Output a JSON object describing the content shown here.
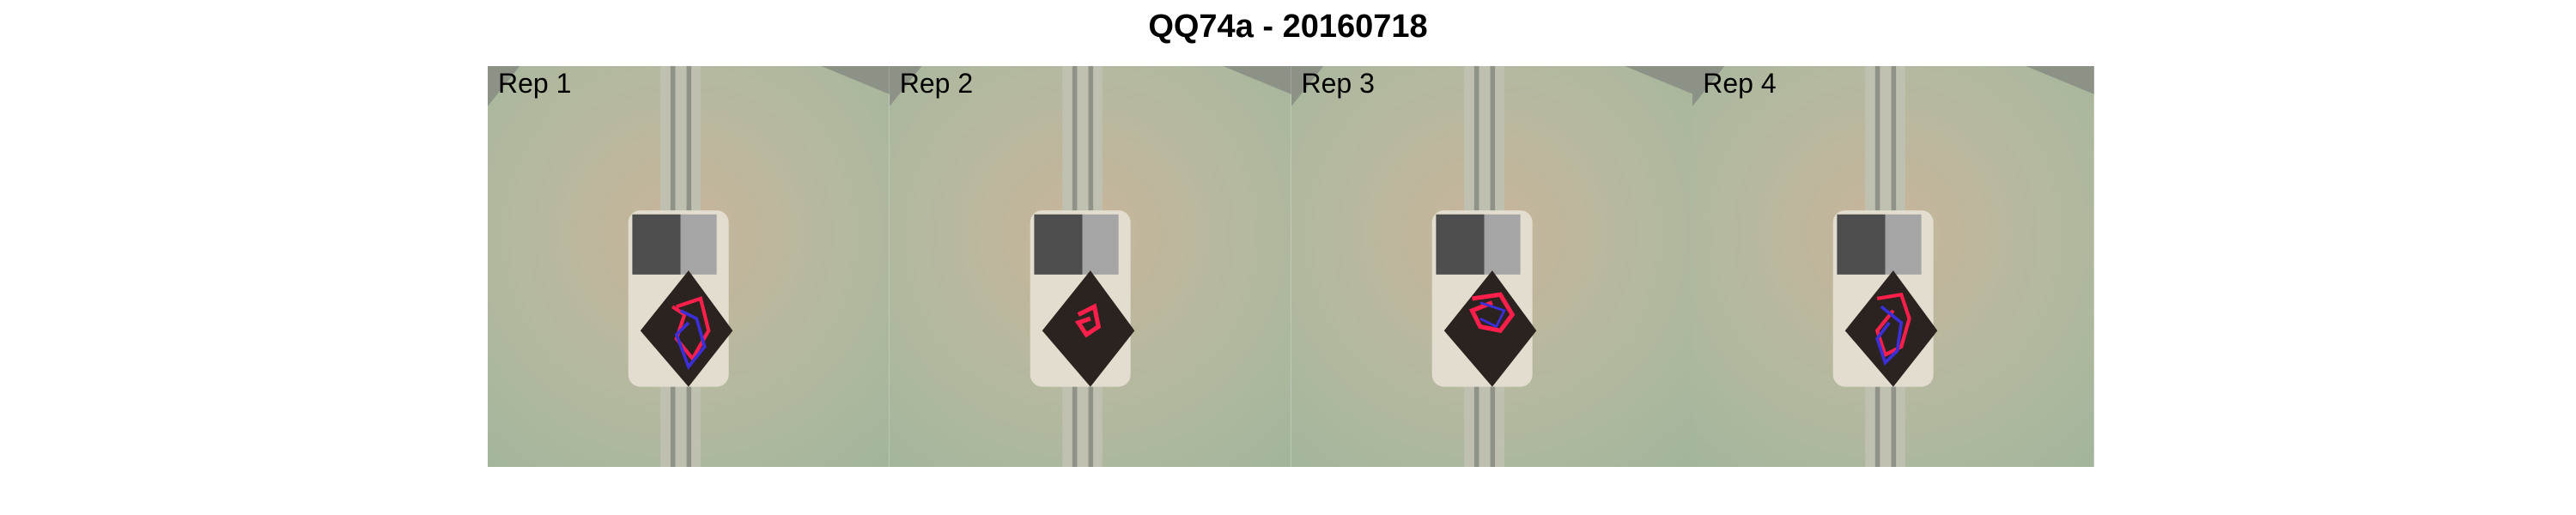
{
  "figure": {
    "title": "QQ74a - 20160718"
  },
  "panels": [
    {
      "label": "Rep 1",
      "trace_colors": [
        "#ff1f4a",
        "#3a2fd8"
      ]
    },
    {
      "label": "Rep 2",
      "trace_colors": [
        "#ff1f4a"
      ]
    },
    {
      "label": "Rep 3",
      "trace_colors": [
        "#ff1f4a",
        "#3a2fd8"
      ]
    },
    {
      "label": "Rep 4",
      "trace_colors": [
        "#ff1f4a",
        "#3a2fd8"
      ]
    }
  ],
  "colors": {
    "arena_floor": "#a9b9a1",
    "arena_floor_warm": "#c8b49a",
    "sample_tray": "#e2ddcf",
    "soil_pot": "#2b2320"
  }
}
